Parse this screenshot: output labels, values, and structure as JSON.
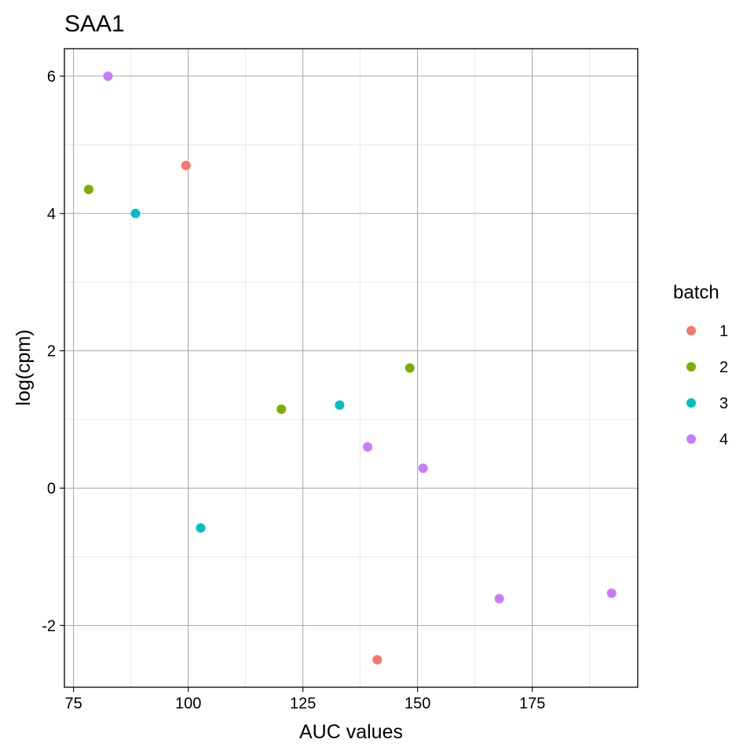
{
  "chart_data": {
    "type": "scatter",
    "title": "SAA1",
    "xlabel": "AUC values",
    "ylabel": "log(cpm)",
    "xlim": [
      73,
      198
    ],
    "ylim": [
      -2.9,
      6.4
    ],
    "x_ticks": [
      75,
      100,
      125,
      150,
      175
    ],
    "y_ticks": [
      -2,
      0,
      2,
      4,
      6
    ],
    "grid": true,
    "legend": {
      "title": "batch",
      "position": "right"
    },
    "series": [
      {
        "name": "1",
        "color": "#F8766D",
        "points": [
          {
            "x": 99.5,
            "y": 4.7
          },
          {
            "x": 141.2,
            "y": -2.5
          }
        ]
      },
      {
        "name": "2",
        "color": "#7CAE00",
        "points": [
          {
            "x": 78.3,
            "y": 4.35
          },
          {
            "x": 120.3,
            "y": 1.15
          },
          {
            "x": 148.3,
            "y": 1.75
          }
        ]
      },
      {
        "name": "3",
        "color": "#00BFC4",
        "points": [
          {
            "x": 88.5,
            "y": 4.0
          },
          {
            "x": 102.7,
            "y": -0.58
          },
          {
            "x": 133.0,
            "y": 1.21
          }
        ]
      },
      {
        "name": "4",
        "color": "#C77CFF",
        "points": [
          {
            "x": 82.5,
            "y": 6.0
          },
          {
            "x": 139.1,
            "y": 0.6
          },
          {
            "x": 151.2,
            "y": 0.29
          },
          {
            "x": 167.8,
            "y": -1.61
          },
          {
            "x": 192.3,
            "y": -1.53
          }
        ]
      }
    ]
  }
}
